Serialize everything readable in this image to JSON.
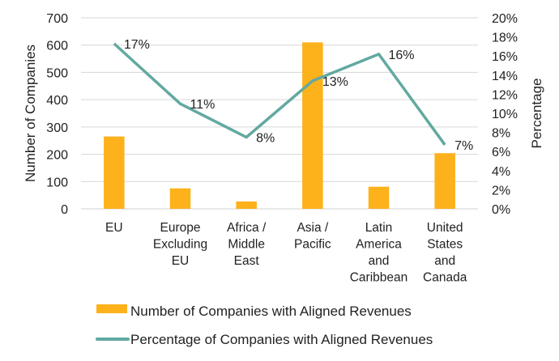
{
  "chart_data": {
    "type": "bar+line",
    "title": "",
    "categories": [
      [
        "EU"
      ],
      [
        "Europe",
        "Excluding",
        "EU"
      ],
      [
        "Africa /",
        "Middle",
        "East"
      ],
      [
        "Asia /",
        "Pacific"
      ],
      [
        "Latin",
        "America",
        "and",
        "Caribbean"
      ],
      [
        "United",
        "States",
        "and",
        "Canada"
      ]
    ],
    "series": [
      {
        "name": "Number of Companies with Aligned Revenues",
        "type": "bar",
        "axis": "left",
        "color": "#FDB11A",
        "values": [
          265,
          75,
          27,
          610,
          81,
          204
        ]
      },
      {
        "name": "Percentage of Companies with Aligned Revenues",
        "type": "line",
        "axis": "right",
        "color": "#62A9A0",
        "values": [
          17.3,
          11.0,
          7.5,
          13.4,
          16.2,
          6.7
        ],
        "data_labels": [
          "17%",
          "11%",
          "8%",
          "13%",
          "16%",
          "7%"
        ]
      }
    ],
    "ylabel": "Number of Companies",
    "ylim": [
      0,
      700
    ],
    "yticks": [
      0,
      100,
      200,
      300,
      400,
      500,
      600,
      700
    ],
    "y2label": "Percentage",
    "y2lim": [
      0,
      20
    ],
    "y2ticks": [
      "0%",
      "2%",
      "4%",
      "6%",
      "8%",
      "10%",
      "12%",
      "14%",
      "16%",
      "18%",
      "20%"
    ],
    "grid": true,
    "legend": "bottom"
  }
}
